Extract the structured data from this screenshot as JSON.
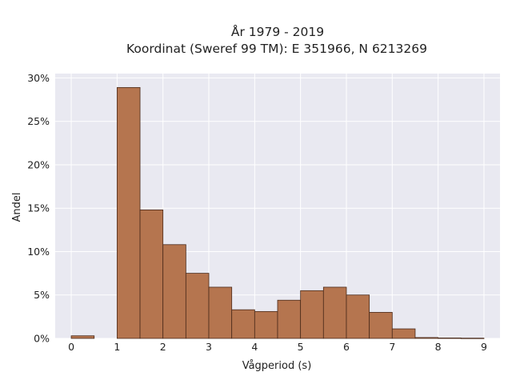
{
  "chart_data": {
    "type": "bar",
    "title_lines": [
      "År 1979 - 2019",
      "Koordinat (Sweref 99 TM): E 351966, N 6213269"
    ],
    "xlabel": "Vågperiod (s)",
    "ylabel": "Andel",
    "bin_width": 0.5,
    "bins": [
      {
        "x0": 0.0,
        "value": 0.003
      },
      {
        "x0": 0.5,
        "value": 0.0
      },
      {
        "x0": 1.0,
        "value": 0.289
      },
      {
        "x0": 1.5,
        "value": 0.148
      },
      {
        "x0": 2.0,
        "value": 0.108
      },
      {
        "x0": 2.5,
        "value": 0.075
      },
      {
        "x0": 3.0,
        "value": 0.059
      },
      {
        "x0": 3.5,
        "value": 0.033
      },
      {
        "x0": 4.0,
        "value": 0.031
      },
      {
        "x0": 4.5,
        "value": 0.044
      },
      {
        "x0": 5.0,
        "value": 0.055
      },
      {
        "x0": 5.5,
        "value": 0.059
      },
      {
        "x0": 6.0,
        "value": 0.05
      },
      {
        "x0": 6.5,
        "value": 0.03
      },
      {
        "x0": 7.0,
        "value": 0.011
      },
      {
        "x0": 7.5,
        "value": 0.001
      },
      {
        "x0": 8.0,
        "value": 0.0005
      },
      {
        "x0": 8.5,
        "value": 0.0003
      }
    ],
    "xlim": [
      -0.35,
      9.35
    ],
    "ylim": [
      0,
      0.305
    ],
    "x_ticks": [
      0,
      1,
      2,
      3,
      4,
      5,
      6,
      7,
      8,
      9
    ],
    "x_tick_labels": [
      "0",
      "1",
      "2",
      "3",
      "4",
      "5",
      "6",
      "7",
      "8",
      "9"
    ],
    "y_ticks": [
      0,
      0.05,
      0.1,
      0.15,
      0.2,
      0.25,
      0.3
    ],
    "y_tick_labels": [
      "0%",
      "5%",
      "10%",
      "15%",
      "20%",
      "25%",
      "30%"
    ],
    "grid": true,
    "colors": {
      "bar_fill": "#b5754f",
      "bar_edge": "#4a2a1a",
      "plot_bg": "#e9e9f1",
      "grid": "#ffffff"
    }
  }
}
